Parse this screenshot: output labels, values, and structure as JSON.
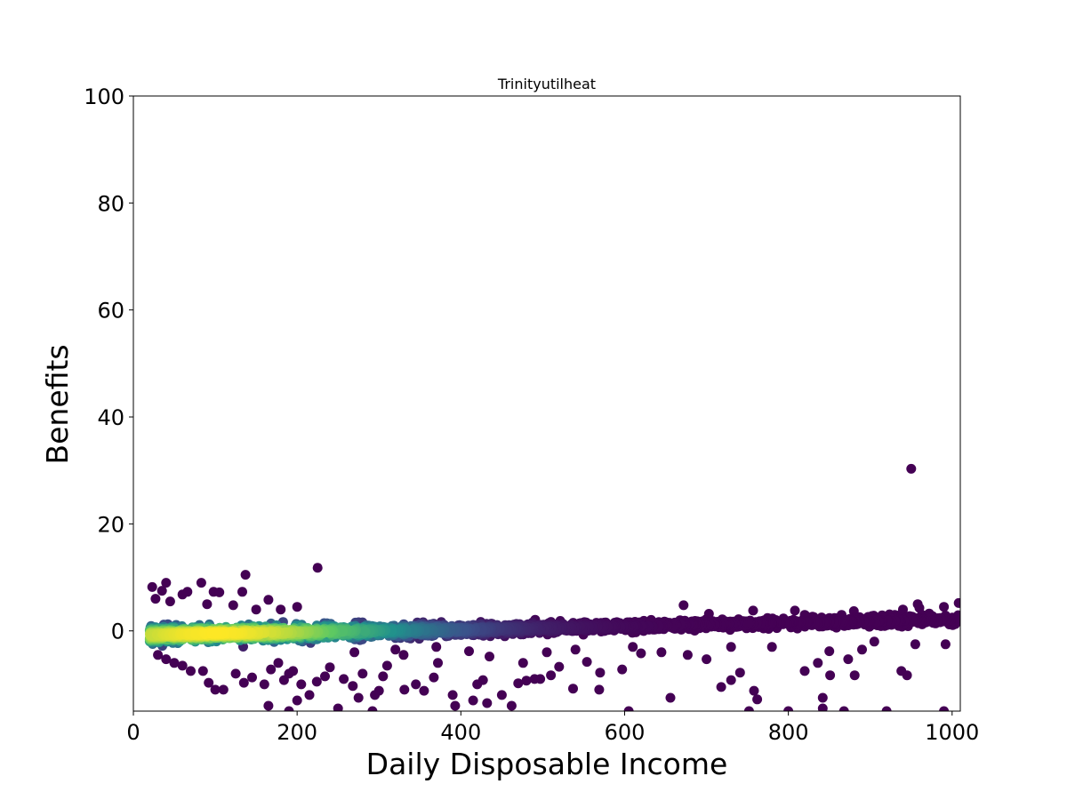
{
  "chart_data": {
    "type": "scatter",
    "title": "Trinityutilheat",
    "xlabel": "Daily Disposable Income",
    "ylabel": "Benefits",
    "xlim": [
      0,
      1010
    ],
    "ylim": [
      -15,
      100
    ],
    "xticks": [
      0,
      200,
      400,
      600,
      800,
      1000
    ],
    "yticks": [
      0,
      20,
      40,
      60,
      80,
      100
    ],
    "grid": false,
    "colormap": "viridis",
    "colormap_stops": [
      "#440154",
      "#3b528b",
      "#21918c",
      "#5ec962",
      "#fde725"
    ],
    "band": {
      "description": "dense band of points colored by point density, centered near y=0",
      "x_range": [
        20,
        1010
      ],
      "center": [
        [
          20,
          -0.8
        ],
        [
          100,
          -0.5
        ],
        [
          200,
          -0.3
        ],
        [
          300,
          0
        ],
        [
          400,
          0.2
        ],
        [
          500,
          0.5
        ],
        [
          600,
          0.8
        ],
        [
          700,
          1.2
        ],
        [
          800,
          1.5
        ],
        [
          900,
          1.8
        ],
        [
          1010,
          2.2
        ]
      ],
      "half_width": [
        [
          20,
          3.0
        ],
        [
          200,
          3.0
        ],
        [
          400,
          2.3
        ],
        [
          600,
          1.8
        ],
        [
          800,
          1.8
        ],
        [
          1010,
          2.2
        ]
      ]
    },
    "outliers": [
      {
        "x": 950,
        "y": 30.3
      },
      {
        "x": 225,
        "y": 11.8
      },
      {
        "x": 137,
        "y": 10.5
      },
      {
        "x": 40,
        "y": 9.0
      },
      {
        "x": 83,
        "y": 9.0
      },
      {
        "x": 23,
        "y": 8.2
      },
      {
        "x": 35,
        "y": 7.5
      },
      {
        "x": 66,
        "y": 7.3
      },
      {
        "x": 98,
        "y": 7.3
      },
      {
        "x": 133,
        "y": 7.3
      },
      {
        "x": 105,
        "y": 7.2
      },
      {
        "x": 165,
        "y": 5.8
      },
      {
        "x": 27,
        "y": 6.0
      },
      {
        "x": 672,
        "y": 4.8
      },
      {
        "x": 1008,
        "y": 5.2
      },
      {
        "x": 958,
        "y": 5.0
      },
      {
        "x": 940,
        "y": 4.0
      },
      {
        "x": 880,
        "y": 3.7
      },
      {
        "x": 808,
        "y": 3.8
      },
      {
        "x": 757,
        "y": 3.8
      },
      {
        "x": 703,
        "y": 3.2
      },
      {
        "x": 700,
        "y": -5.3
      },
      {
        "x": 718,
        "y": -10.5
      },
      {
        "x": 730,
        "y": -9.2
      },
      {
        "x": 741,
        "y": -7.8
      },
      {
        "x": 758,
        "y": -11.2
      },
      {
        "x": 762,
        "y": -12.8
      },
      {
        "x": 677,
        "y": -4.5
      },
      {
        "x": 656,
        "y": -12.5
      },
      {
        "x": 645,
        "y": -4.0
      },
      {
        "x": 820,
        "y": -7.5
      },
      {
        "x": 836,
        "y": -6.0
      },
      {
        "x": 851,
        "y": -8.3
      },
      {
        "x": 842,
        "y": -12.5
      },
      {
        "x": 842,
        "y": -14.5
      },
      {
        "x": 850,
        "y": -3.8
      },
      {
        "x": 873,
        "y": -5.3
      },
      {
        "x": 881,
        "y": -8.3
      },
      {
        "x": 890,
        "y": -3.5
      },
      {
        "x": 905,
        "y": -2.0
      },
      {
        "x": 938,
        "y": -7.5
      },
      {
        "x": 945,
        "y": -8.3
      },
      {
        "x": 955,
        "y": -2.5
      },
      {
        "x": 992,
        "y": -2.5
      },
      {
        "x": 990,
        "y": -15.0
      },
      {
        "x": 920,
        "y": -15.0
      },
      {
        "x": 868,
        "y": -15.0
      },
      {
        "x": 800,
        "y": -15.0
      },
      {
        "x": 752,
        "y": -15.0
      },
      {
        "x": 605,
        "y": -15.0
      },
      {
        "x": 597,
        "y": -7.2
      },
      {
        "x": 570,
        "y": -7.8
      },
      {
        "x": 569,
        "y": -11.0
      },
      {
        "x": 537,
        "y": -10.8
      },
      {
        "x": 554,
        "y": -5.8
      },
      {
        "x": 520,
        "y": -6.7
      },
      {
        "x": 510,
        "y": -8.3
      },
      {
        "x": 497,
        "y": -9.0
      },
      {
        "x": 490,
        "y": -9.0
      },
      {
        "x": 480,
        "y": -9.3
      },
      {
        "x": 476,
        "y": -6.0
      },
      {
        "x": 470,
        "y": -9.8
      },
      {
        "x": 450,
        "y": -12.0
      },
      {
        "x": 462,
        "y": -14.0
      },
      {
        "x": 432,
        "y": -13.5
      },
      {
        "x": 427,
        "y": -9.2
      },
      {
        "x": 420,
        "y": -10.0
      },
      {
        "x": 415,
        "y": -13.0
      },
      {
        "x": 390,
        "y": -12.0
      },
      {
        "x": 393,
        "y": -14.0
      },
      {
        "x": 370,
        "y": -3.0
      },
      {
        "x": 372,
        "y": -6.0
      },
      {
        "x": 367,
        "y": -8.7
      },
      {
        "x": 355,
        "y": -11.2
      },
      {
        "x": 345,
        "y": -10.0
      },
      {
        "x": 331,
        "y": -11.0
      },
      {
        "x": 330,
        "y": -4.5
      },
      {
        "x": 310,
        "y": -6.5
      },
      {
        "x": 305,
        "y": -8.5
      },
      {
        "x": 300,
        "y": -11.2
      },
      {
        "x": 295,
        "y": -12.0
      },
      {
        "x": 292,
        "y": -15.0
      },
      {
        "x": 280,
        "y": -8.0
      },
      {
        "x": 275,
        "y": -12.5
      },
      {
        "x": 268,
        "y": -10.3
      },
      {
        "x": 257,
        "y": -9.0
      },
      {
        "x": 250,
        "y": -14.5
      },
      {
        "x": 240,
        "y": -6.8
      },
      {
        "x": 234,
        "y": -8.5
      },
      {
        "x": 224,
        "y": -9.5
      },
      {
        "x": 215,
        "y": -12.0
      },
      {
        "x": 205,
        "y": -10.0
      },
      {
        "x": 200,
        "y": -13.0
      },
      {
        "x": 195,
        "y": -7.5
      },
      {
        "x": 190,
        "y": -8.0
      },
      {
        "x": 184,
        "y": -9.2
      },
      {
        "x": 177,
        "y": -6.0
      },
      {
        "x": 168,
        "y": -7.2
      },
      {
        "x": 160,
        "y": -10.0
      },
      {
        "x": 145,
        "y": -8.7
      },
      {
        "x": 135,
        "y": -9.7
      },
      {
        "x": 125,
        "y": -8.0
      },
      {
        "x": 110,
        "y": -11.0
      },
      {
        "x": 100,
        "y": -11.0
      },
      {
        "x": 92,
        "y": -9.7
      },
      {
        "x": 85,
        "y": -7.5
      },
      {
        "x": 70,
        "y": -7.5
      },
      {
        "x": 60,
        "y": -6.5
      },
      {
        "x": 50,
        "y": -6.0
      },
      {
        "x": 40,
        "y": -5.3
      },
      {
        "x": 30,
        "y": -4.5
      },
      {
        "x": 165,
        "y": -14.0
      },
      {
        "x": 190,
        "y": -15.0
      },
      {
        "x": 270,
        "y": -4.0
      },
      {
        "x": 320,
        "y": -3.5
      },
      {
        "x": 410,
        "y": -3.8
      },
      {
        "x": 435,
        "y": -4.8
      },
      {
        "x": 505,
        "y": -4.0
      },
      {
        "x": 540,
        "y": -3.5
      },
      {
        "x": 620,
        "y": -4.2
      },
      {
        "x": 610,
        "y": -3.0
      },
      {
        "x": 730,
        "y": -3.0
      },
      {
        "x": 780,
        "y": -3.0
      },
      {
        "x": 930,
        "y": 3.0
      },
      {
        "x": 960,
        "y": 4.3
      },
      {
        "x": 990,
        "y": 4.5
      },
      {
        "x": 865,
        "y": 3.0
      },
      {
        "x": 820,
        "y": 3.0
      },
      {
        "x": 180,
        "y": 4.0
      },
      {
        "x": 200,
        "y": 4.5
      },
      {
        "x": 150,
        "y": 4.0
      },
      {
        "x": 122,
        "y": 4.8
      },
      {
        "x": 90,
        "y": 5.0
      },
      {
        "x": 60,
        "y": 6.8
      },
      {
        "x": 45,
        "y": 5.5
      }
    ]
  }
}
